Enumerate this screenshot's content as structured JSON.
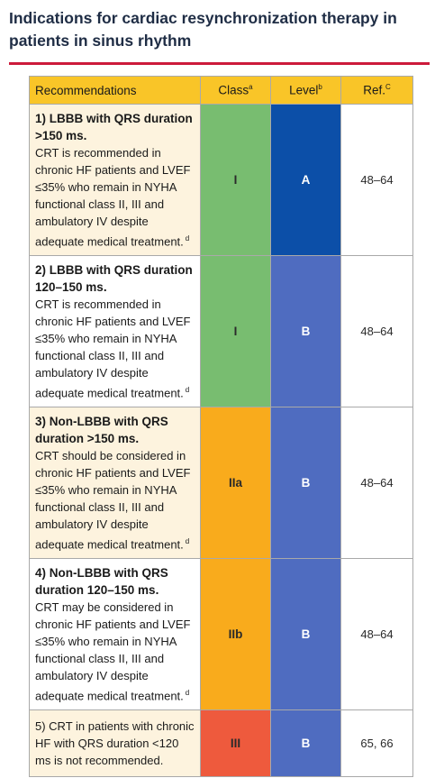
{
  "title": "Indications for cardiac resynchronization therapy in patients in sinus rhythm",
  "colors": {
    "accent_rule": "#cc1b3b",
    "header_bg": "#f9c528",
    "recommendation_bg": "#fdf3de",
    "class_I": "#78bd70",
    "class_IIa": "#f9ab1c",
    "class_IIb": "#f9ab1c",
    "class_III": "#ee5a3d",
    "level_A": "#0c4fa8",
    "level_B": "#4f6cc0"
  },
  "table": {
    "headers": {
      "recommendations": "Recommendations",
      "class": "Class",
      "class_sup": "a",
      "level": "Level",
      "level_sup": "b",
      "ref": "Ref.",
      "ref_sup": "C"
    },
    "rows": [
      {
        "heading": "1) LBBB with QRS duration >150 ms.",
        "body": "CRT is recommended in chronic HF patients and LVEF ≤35% who remain in NYHA functional class II, III and ambulatory IV despite adequate medical treatment.",
        "footnote": "d",
        "class": "I",
        "level": "A",
        "ref": "48–64"
      },
      {
        "heading": "2) LBBB with QRS duration 120–150 ms.",
        "body": "CRT is recommended in chronic HF patients and LVEF ≤35% who remain in NYHA functional class II, III and ambulatory IV despite adequate medical treatment.",
        "footnote": "d",
        "class": "I",
        "level": "B",
        "ref": "48–64"
      },
      {
        "heading": "3) Non-LBBB with QRS duration >150 ms.",
        "body": "CRT should be considered in chronic HF patients and LVEF ≤35% who remain in NYHA functional class II, III and ambulatory IV despite adequate medical treatment.",
        "footnote": "d",
        "class": "IIa",
        "level": "B",
        "ref": "48–64"
      },
      {
        "heading": "4) Non-LBBB with QRS duration 120–150 ms.",
        "body": "CRT may be considered in chronic HF patients and LVEF ≤35% who remain in NYHA functional class II, III and ambulatory IV despite adequate medical treatment.",
        "footnote": "d",
        "class": "IIb",
        "level": "B",
        "ref": "48–64"
      },
      {
        "heading": "",
        "body": "5) CRT in patients with chronic HF with QRS duration <120 ms is not recommended.",
        "footnote": "",
        "class": "III",
        "level": "B",
        "ref": "65, 66"
      }
    ]
  }
}
